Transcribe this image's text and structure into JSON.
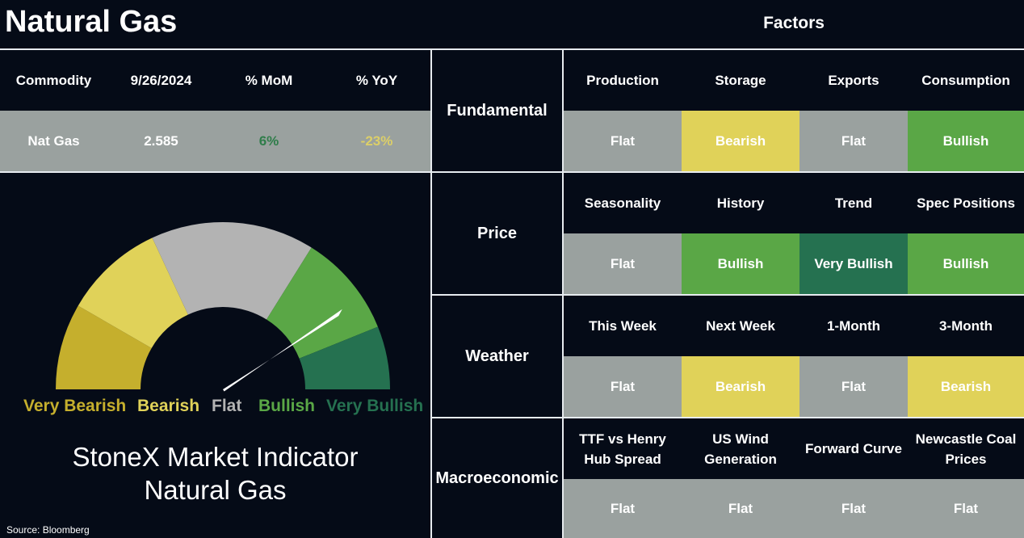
{
  "header": {
    "title": "Natural Gas",
    "factors_title": "Factors"
  },
  "colors": {
    "background": "#050b17",
    "flat": "#9aa19f",
    "bearish": "#e0d259",
    "very_bearish": "#c5af2d",
    "bullish": "#5aa746",
    "very_bullish": "#257150",
    "gauge_flat": "#b3b3b3",
    "mom_text": "#2f7d4a",
    "yoy_text": "#dccf68"
  },
  "commodity_table": {
    "headers": [
      "Commodity",
      "9/26/2024",
      "% MoM",
      "% YoY"
    ],
    "row": {
      "name": "Nat Gas",
      "price": "2.585",
      "mom": "6%",
      "yoy": "-23%"
    }
  },
  "gauge": {
    "labels": [
      "Very Bearish",
      "Bearish",
      "Flat",
      "Bullish",
      "Very Bullish"
    ],
    "indicator_line1": "StoneX Market Indicator",
    "indicator_line2": "Natural Gas",
    "needle_position": 0.82
  },
  "source": "Source: Bloomberg",
  "categories": [
    {
      "name": "Fundamental",
      "factors": [
        "Production",
        "Storage",
        "Exports",
        "Consumption"
      ],
      "ratings": [
        "Flat",
        "Bearish",
        "Flat",
        "Bullish"
      ]
    },
    {
      "name": "Price",
      "factors": [
        "Seasonality",
        "History",
        "Trend",
        "Spec Positions"
      ],
      "ratings": [
        "Flat",
        "Bullish",
        "Very Bullish",
        "Bullish"
      ]
    },
    {
      "name": "Weather",
      "factors": [
        "This Week",
        "Next Week",
        "1-Month",
        "3-Month"
      ],
      "ratings": [
        "Flat",
        "Bearish",
        "Flat",
        "Bearish"
      ]
    },
    {
      "name": "Macroeconomic",
      "factors": [
        "TTF vs Henry Hub Spread",
        "US Wind Generation",
        "Forward Curve",
        "Newcastle Coal Prices"
      ],
      "ratings": [
        "Flat",
        "Flat",
        "Flat",
        "Flat"
      ]
    }
  ]
}
